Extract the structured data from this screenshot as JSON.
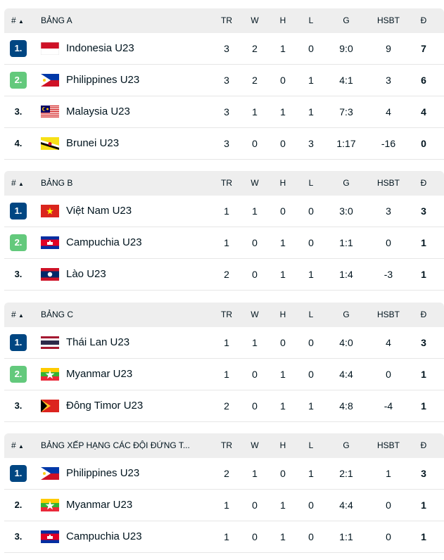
{
  "columns": {
    "hash": "#",
    "tr": "TR",
    "w": "W",
    "h": "H",
    "l": "L",
    "g": "G",
    "hsbt": "HSBT",
    "d": "Đ"
  },
  "colors": {
    "rank_primary": "#004682",
    "rank_secondary": "#63c97c",
    "header_bg": "#eeeeee"
  },
  "groups": [
    {
      "title": "BẢNG A",
      "rows": [
        {
          "rank": "1.",
          "style": "q1",
          "flag": "indonesia",
          "team": "Indonesia U23",
          "tr": "3",
          "w": "2",
          "h": "1",
          "l": "0",
          "g": "9:0",
          "hsbt": "9",
          "d": "7"
        },
        {
          "rank": "2.",
          "style": "q2",
          "flag": "philippines",
          "team": "Philippines U23",
          "tr": "3",
          "w": "2",
          "h": "0",
          "l": "1",
          "g": "4:1",
          "hsbt": "3",
          "d": "6"
        },
        {
          "rank": "3.",
          "style": "plain",
          "flag": "malaysia",
          "team": "Malaysia U23",
          "tr": "3",
          "w": "1",
          "h": "1",
          "l": "1",
          "g": "7:3",
          "hsbt": "4",
          "d": "4"
        },
        {
          "rank": "4.",
          "style": "plain",
          "flag": "brunei",
          "team": "Brunei U23",
          "tr": "3",
          "w": "0",
          "h": "0",
          "l": "3",
          "g": "1:17",
          "hsbt": "-16",
          "d": "0"
        }
      ]
    },
    {
      "title": "BẢNG B",
      "rows": [
        {
          "rank": "1.",
          "style": "q1",
          "flag": "vietnam",
          "team": "Việt Nam U23",
          "tr": "1",
          "w": "1",
          "h": "0",
          "l": "0",
          "g": "3:0",
          "hsbt": "3",
          "d": "3"
        },
        {
          "rank": "2.",
          "style": "q2",
          "flag": "cambodia",
          "team": "Campuchia U23",
          "tr": "1",
          "w": "0",
          "h": "1",
          "l": "0",
          "g": "1:1",
          "hsbt": "0",
          "d": "1"
        },
        {
          "rank": "3.",
          "style": "plain",
          "flag": "laos",
          "team": "Lào U23",
          "tr": "2",
          "w": "0",
          "h": "1",
          "l": "1",
          "g": "1:4",
          "hsbt": "-3",
          "d": "1"
        }
      ]
    },
    {
      "title": "BẢNG C",
      "rows": [
        {
          "rank": "1.",
          "style": "q1",
          "flag": "thailand",
          "team": "Thái Lan U23",
          "tr": "1",
          "w": "1",
          "h": "0",
          "l": "0",
          "g": "4:0",
          "hsbt": "4",
          "d": "3"
        },
        {
          "rank": "2.",
          "style": "q2",
          "flag": "myanmar",
          "team": "Myanmar U23",
          "tr": "1",
          "w": "0",
          "h": "1",
          "l": "0",
          "g": "4:4",
          "hsbt": "0",
          "d": "1"
        },
        {
          "rank": "3.",
          "style": "plain",
          "flag": "timor-leste",
          "team": "Đông Timor U23",
          "tr": "2",
          "w": "0",
          "h": "1",
          "l": "1",
          "g": "4:8",
          "hsbt": "-4",
          "d": "1"
        }
      ]
    },
    {
      "title": "BẢNG XẾP HẠNG CÁC ĐỘI ĐỨNG T...",
      "rows": [
        {
          "rank": "1.",
          "style": "q1",
          "flag": "philippines",
          "team": "Philippines U23",
          "tr": "2",
          "w": "1",
          "h": "0",
          "l": "1",
          "g": "2:1",
          "hsbt": "1",
          "d": "3"
        },
        {
          "rank": "2.",
          "style": "plain",
          "flag": "myanmar",
          "team": "Myanmar U23",
          "tr": "1",
          "w": "0",
          "h": "1",
          "l": "0",
          "g": "4:4",
          "hsbt": "0",
          "d": "1"
        },
        {
          "rank": "3.",
          "style": "plain",
          "flag": "cambodia",
          "team": "Campuchia U23",
          "tr": "1",
          "w": "0",
          "h": "1",
          "l": "0",
          "g": "1:1",
          "hsbt": "0",
          "d": "1"
        }
      ]
    }
  ]
}
